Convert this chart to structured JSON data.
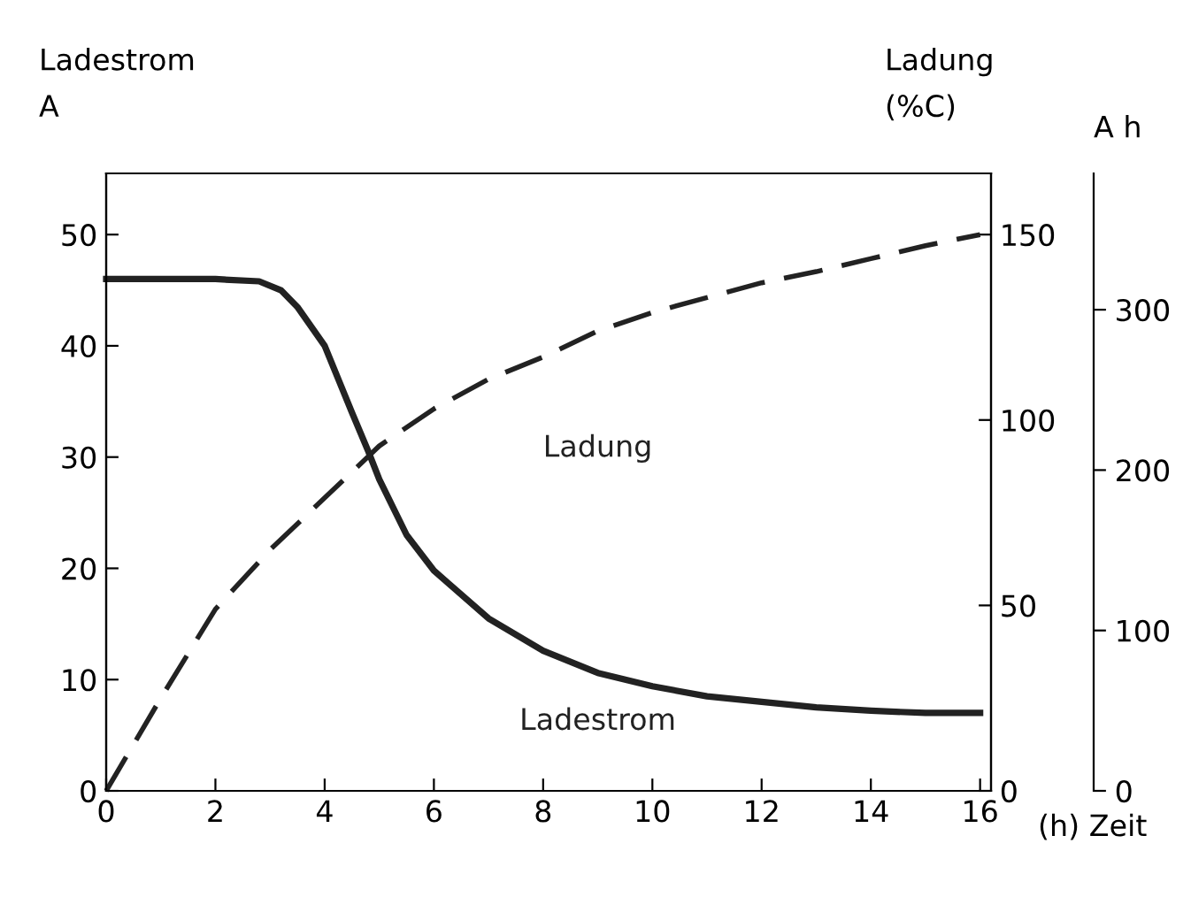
{
  "chart_data": {
    "type": "line",
    "ylabel": "Ladestrom\nA",
    "y2label": "Ladung\n(%C)",
    "y3label": "A h",
    "xlabel": "(h) Zeit",
    "xlim": [
      0,
      16.2
    ],
    "xticks": [
      0,
      2,
      4,
      6,
      8,
      10,
      12,
      14,
      16
    ],
    "ylim": [
      0,
      55.5
    ],
    "yticks": [
      0,
      10,
      20,
      30,
      40,
      50
    ],
    "y2lim": [
      0,
      166.5
    ],
    "y2ticks": [
      0,
      50,
      100,
      150
    ],
    "y3lim": [
      0,
      385
    ],
    "y3ticks": [
      0,
      100,
      200,
      300
    ],
    "grid": false,
    "legend": false,
    "marker": "none",
    "series": [
      {
        "name": "Ladestrom",
        "color": "#222222",
        "line_style": "solid",
        "x": [
          0,
          1,
          2,
          2.8,
          3.2,
          3.5,
          4,
          4.5,
          4.8,
          5,
          5.5,
          6,
          7,
          8,
          9,
          10,
          11,
          12,
          13,
          14,
          15,
          16
        ],
        "values": [
          46,
          46,
          46,
          45.8,
          45,
          43.5,
          40,
          34,
          30.5,
          28,
          23,
          19.8,
          15.5,
          12.6,
          10.6,
          9.4,
          8.5,
          8,
          7.5,
          7.2,
          7,
          7
        ]
      },
      {
        "name": "Ladung",
        "color": "#222222",
        "line_style": "dashed",
        "axis": "y2",
        "x": [
          0,
          1,
          2,
          3,
          4,
          5,
          6,
          7,
          8,
          9,
          10,
          11,
          12,
          13,
          14,
          15,
          16
        ],
        "values": [
          0,
          25,
          49,
          65,
          79,
          93,
          103,
          111,
          117,
          124,
          129,
          133,
          137,
          140,
          143.5,
          147,
          150
        ]
      }
    ]
  }
}
